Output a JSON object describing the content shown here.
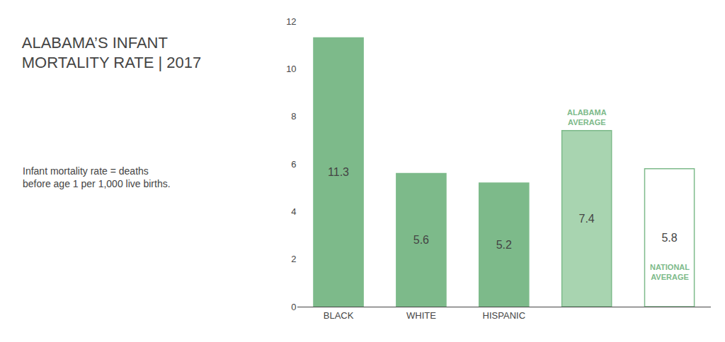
{
  "chart_data": {
    "type": "bar",
    "title": "ALABAMA’S INFANT\nMORTALITY RATE | 2017",
    "subtitle": "Infant mortality rate = deaths\nbefore age 1 per 1,000 live births.",
    "categories": [
      "BLACK",
      "WHITE",
      "HISPANIC",
      null,
      null
    ],
    "values": [
      11.3,
      5.6,
      5.2,
      7.4,
      5.8
    ],
    "color": "#7dba8a",
    "colors": [
      "#7dba8a",
      "#7dba8a",
      "#7dba8a",
      "#a8d4b0",
      "#ffffff"
    ],
    "annotations": [
      {
        "text": "ALABAMA\nAVERAGE",
        "index": 3
      },
      {
        "text": "NATIONAL\nAVERAGE",
        "index": 4
      }
    ],
    "data_labels": true,
    "ylim": [
      0,
      12
    ],
    "yticks": [
      0,
      2,
      4,
      6,
      8,
      10,
      12
    ],
    "grid": false
  }
}
